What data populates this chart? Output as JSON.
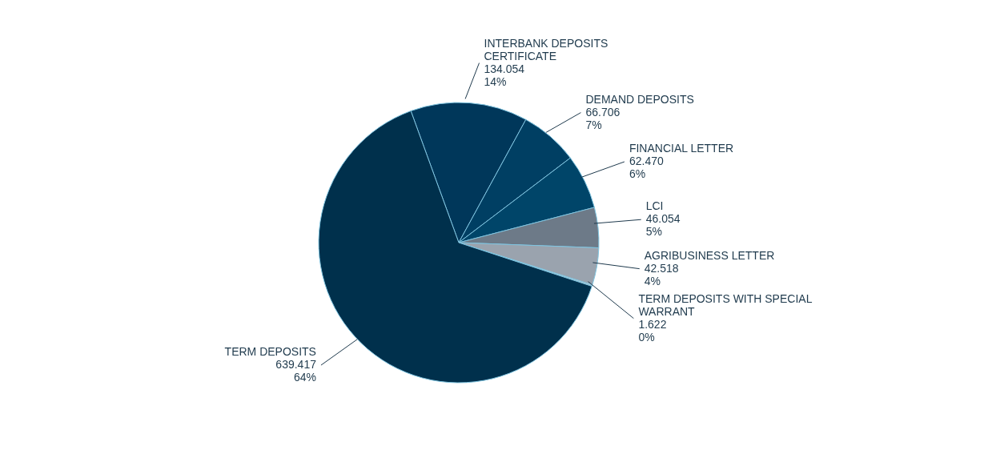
{
  "chart_data": {
    "type": "pie",
    "categories": [
      "INTERBANK DEPOSITS CERTIFICATE",
      "DEMAND DEPOSITS",
      "FINANCIAL LETTER",
      "LCI",
      "AGRIBUSINESS LETTER",
      "TERM DEPOSITS WITH SPECIAL WARRANT",
      "TERM DEPOSITS"
    ],
    "values": [
      134.054,
      66.706,
      62.47,
      46.054,
      42.518,
      1.622,
      639.417
    ],
    "colors": [
      "#00375a",
      "#003f63",
      "#004569",
      "#6d7a88",
      "#9aa3ae",
      "#c0c8d0",
      "#00304c"
    ],
    "value_labels": [
      "134.054\n14%",
      "66.706\n7%",
      "62.470\n6%",
      "46.054\n5%",
      "42.518\n4%",
      "1.622\n0%",
      "639.417\n64%"
    ],
    "legend": false
  }
}
